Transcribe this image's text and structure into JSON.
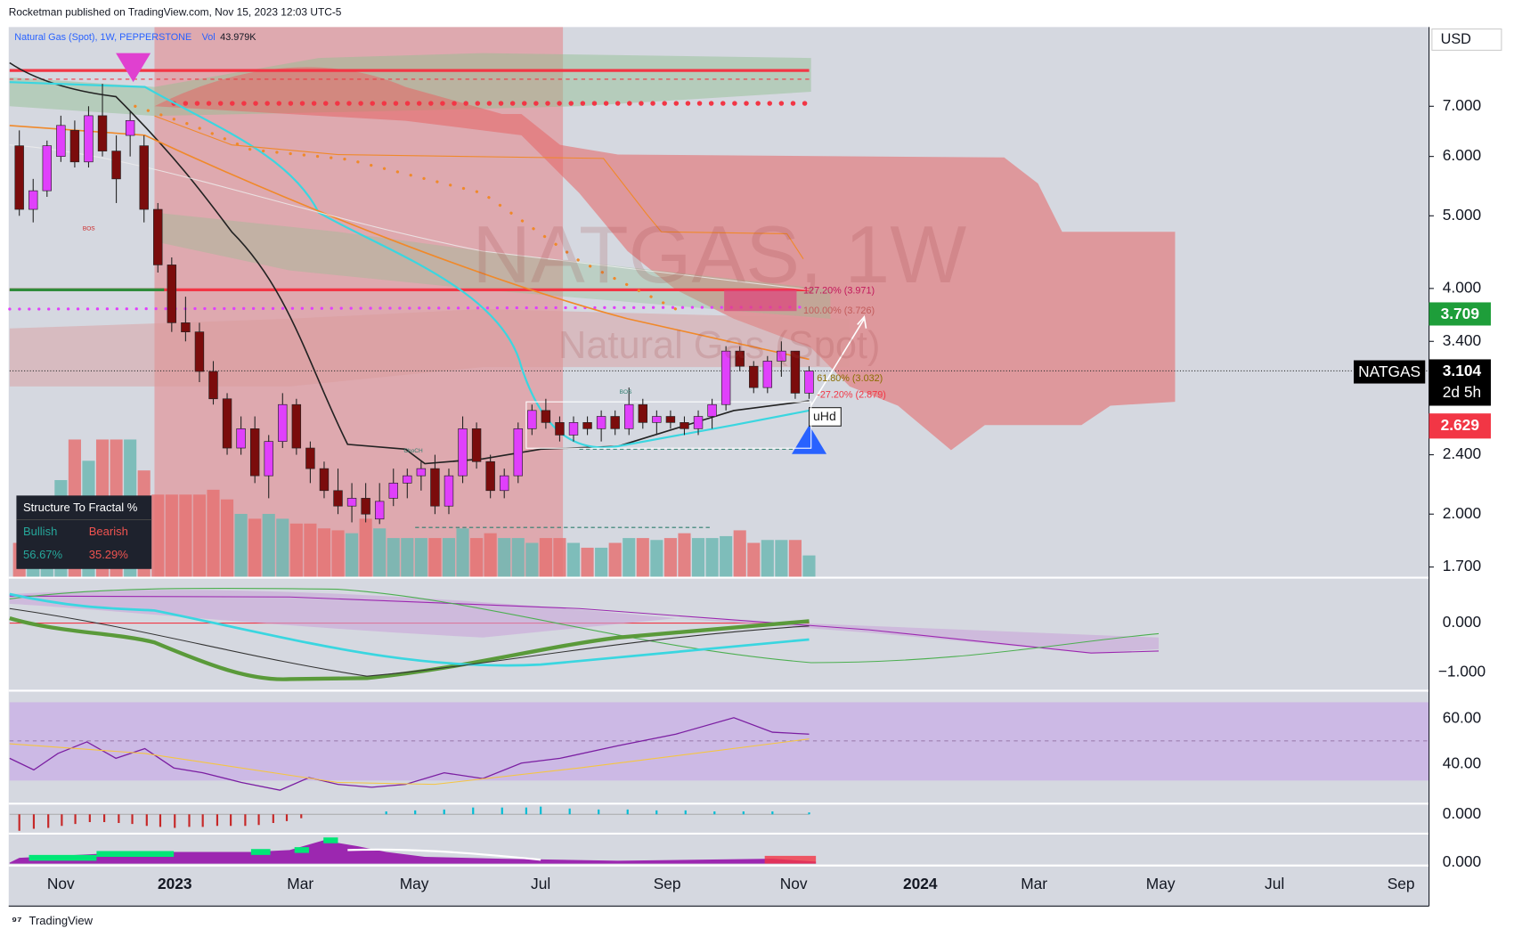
{
  "header": {
    "publisher": "Rocketman published on TradingView.com, Nov 15, 2023 12:03 UTC-5"
  },
  "legend": {
    "symbol": "Natural Gas (Spot), 1W, PEPPERSTONE",
    "vol_label": "Vol",
    "vol_value": "43.979K"
  },
  "currency": "USD",
  "watermark": {
    "main": "NATGAS, 1W",
    "sub": "Natural Gas (Spot)"
  },
  "price_chart": {
    "type": "candlestick",
    "log_scale": true,
    "yticks": [
      {
        "value": 7,
        "label": "7.000"
      },
      {
        "value": 6,
        "label": "6.000"
      },
      {
        "value": 5,
        "label": "5.000"
      },
      {
        "value": 4,
        "label": "4.000"
      },
      {
        "value": 3.4,
        "label": "3.400"
      },
      {
        "value": 2.4,
        "label": "2.400"
      },
      {
        "value": 2,
        "label": "2.000"
      },
      {
        "value": 1.7,
        "label": "1.700"
      }
    ],
    "up_color": "#e040fb",
    "down_color": "#7b0c0c",
    "candles": [
      [
        6.2,
        6.5,
        5.0,
        5.1
      ],
      [
        5.1,
        5.6,
        4.9,
        5.4
      ],
      [
        5.4,
        6.3,
        5.3,
        6.2
      ],
      [
        6.0,
        6.8,
        5.9,
        6.6
      ],
      [
        6.5,
        6.7,
        5.8,
        5.9
      ],
      [
        5.9,
        7.0,
        5.8,
        6.8
      ],
      [
        6.8,
        7.5,
        6.0,
        6.1
      ],
      [
        6.1,
        6.4,
        5.2,
        5.6
      ],
      [
        6.4,
        6.9,
        6.0,
        6.7
      ],
      [
        6.2,
        6.4,
        4.9,
        5.1
      ],
      [
        5.1,
        5.2,
        4.2,
        4.3
      ],
      [
        4.3,
        4.4,
        3.5,
        3.6
      ],
      [
        3.6,
        3.9,
        3.4,
        3.5
      ],
      [
        3.5,
        3.6,
        3.0,
        3.1
      ],
      [
        3.1,
        3.2,
        2.8,
        2.85
      ],
      [
        2.85,
        2.9,
        2.4,
        2.45
      ],
      [
        2.45,
        2.7,
        2.4,
        2.6
      ],
      [
        2.6,
        2.7,
        2.2,
        2.25
      ],
      [
        2.25,
        2.55,
        2.1,
        2.5
      ],
      [
        2.5,
        2.9,
        2.45,
        2.8
      ],
      [
        2.8,
        2.85,
        2.4,
        2.45
      ],
      [
        2.45,
        2.5,
        2.2,
        2.3
      ],
      [
        2.3,
        2.35,
        2.1,
        2.15
      ],
      [
        2.15,
        2.3,
        2.0,
        2.05
      ],
      [
        2.05,
        2.2,
        1.95,
        2.1
      ],
      [
        2.1,
        2.2,
        1.95,
        2.0
      ],
      [
        1.97,
        2.2,
        1.94,
        2.08
      ],
      [
        2.1,
        2.3,
        2.05,
        2.2
      ],
      [
        2.2,
        2.3,
        2.1,
        2.25
      ],
      [
        2.25,
        2.35,
        2.15,
        2.3
      ],
      [
        2.3,
        2.4,
        2.0,
        2.05
      ],
      [
        2.05,
        2.3,
        2.0,
        2.25
      ],
      [
        2.25,
        2.7,
        2.2,
        2.6
      ],
      [
        2.6,
        2.65,
        2.3,
        2.35
      ],
      [
        2.35,
        2.4,
        2.1,
        2.15
      ],
      [
        2.15,
        2.3,
        2.1,
        2.25
      ],
      [
        2.25,
        2.65,
        2.2,
        2.6
      ],
      [
        2.6,
        2.8,
        2.55,
        2.75
      ],
      [
        2.75,
        2.85,
        2.6,
        2.65
      ],
      [
        2.65,
        2.7,
        2.5,
        2.55
      ],
      [
        2.55,
        2.7,
        2.5,
        2.65
      ],
      [
        2.65,
        2.7,
        2.55,
        2.6
      ],
      [
        2.6,
        2.75,
        2.5,
        2.7
      ],
      [
        2.7,
        2.75,
        2.55,
        2.6
      ],
      [
        2.6,
        2.95,
        2.55,
        2.8
      ],
      [
        2.8,
        2.85,
        2.6,
        2.65
      ],
      [
        2.65,
        2.75,
        2.55,
        2.7
      ],
      [
        2.7,
        2.75,
        2.6,
        2.65
      ],
      [
        2.65,
        2.7,
        2.55,
        2.6
      ],
      [
        2.6,
        2.75,
        2.55,
        2.7
      ],
      [
        2.7,
        2.85,
        2.6,
        2.8
      ],
      [
        2.8,
        3.35,
        2.75,
        3.3
      ],
      [
        3.3,
        3.35,
        3.1,
        3.15
      ],
      [
        3.15,
        3.2,
        2.9,
        2.95
      ],
      [
        2.95,
        3.25,
        2.9,
        3.2
      ],
      [
        3.2,
        3.4,
        3.05,
        3.3
      ],
      [
        3.3,
        3.3,
        2.85,
        2.9
      ],
      [
        2.9,
        3.15,
        2.85,
        3.104
      ]
    ],
    "volume": [
      35,
      55,
      75,
      100,
      142,
      120,
      142,
      142,
      142,
      110,
      85,
      85,
      85,
      85,
      90,
      80,
      65,
      60,
      65,
      60,
      55,
      55,
      50,
      48,
      45,
      60,
      50,
      40,
      40,
      40,
      40,
      40,
      50,
      40,
      45,
      40,
      40,
      35,
      40,
      40,
      35,
      30,
      30,
      35,
      40,
      40,
      38,
      40,
      45,
      40,
      40,
      42,
      48,
      35,
      38,
      38,
      38,
      22
    ],
    "volume_up_color": "#6fb9b3",
    "volume_down_color": "#e57373"
  },
  "time_axis": [
    "Nov",
    "2023",
    "Mar",
    "May",
    "Jul",
    "Sep",
    "Nov",
    "2024",
    "Mar",
    "May",
    "Jul",
    "Sep"
  ],
  "price_tags": {
    "upper": {
      "label": "3.709",
      "color": "#1e9e3a"
    },
    "symbol": "NATGAS",
    "last": {
      "label": "3.104",
      "color": "#000000"
    },
    "countdown": "2d 5h",
    "lower": {
      "label": "2.629",
      "color": "#f23645"
    }
  },
  "annotations": {
    "fib_1272": "127.20% (3.971)",
    "fib_100": "100.00% (3.726)",
    "fib_618": "61.80% (3.032)",
    "fib_m272": "-27.20% (2.879)",
    "uhd": "uHd",
    "bos_1": "BOS",
    "choch": "ChoCH",
    "bos_2": "BOS"
  },
  "structure_table": {
    "title": "Structure To Fractal %",
    "bullish": "Bullish",
    "bearish": "Bearish",
    "bullish_value": "56.67%",
    "bearish_value": "35.29%"
  },
  "indicator_axes": {
    "p1_top": "0.000",
    "p1_bottom": "−1.000",
    "p2_top": "60.00",
    "p2_bottom": "40.00",
    "p3": "0.000",
    "p4": "0.000"
  },
  "footer": "TradingView"
}
